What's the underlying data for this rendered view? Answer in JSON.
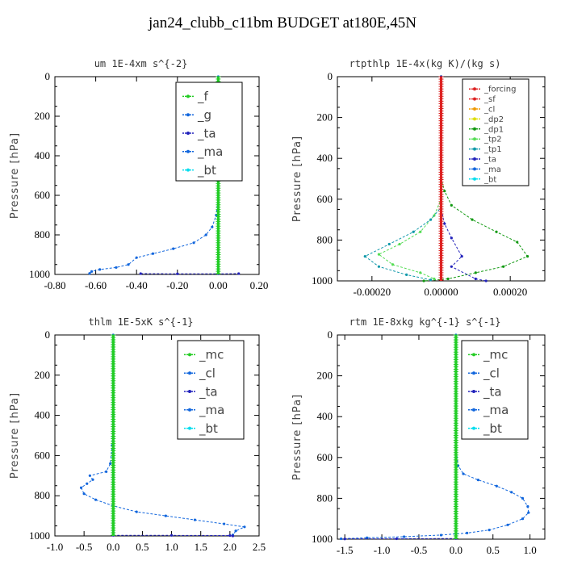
{
  "title": "jan24_clubb_c11bm  BUDGET at180E,45N",
  "colors": {
    "green": "#22cc22",
    "blue": "#1166dd",
    "navy": "#2222bb",
    "cyan": "#00ddee",
    "red": "#dd2222",
    "orange": "#ee9900",
    "yellow": "#dddd00",
    "dkgreen": "#119911",
    "ltgreen": "#55dd55",
    "teal": "#1199aa"
  },
  "chart_data": [
    {
      "id": "um",
      "type": "line",
      "title": "um   1E-4xm s^{-2}",
      "ylabel": "Pressure [hPa]",
      "xlim": [
        -0.8,
        0.2
      ],
      "ylim": [
        1000,
        0
      ],
      "xticks": [
        "-0.80",
        "-0.60",
        "-0.40",
        "-0.20",
        "0.00",
        "0.20"
      ],
      "xtick_values": [
        -0.8,
        -0.6,
        -0.4,
        -0.2,
        0.0,
        0.2
      ],
      "yticks": [
        "0",
        "200",
        "400",
        "600",
        "800",
        "1000"
      ],
      "ytick_values": [
        0,
        200,
        400,
        600,
        800,
        1000
      ],
      "legend": [
        "_f",
        "_g",
        "_ta",
        "_ma",
        "_bt"
      ],
      "legend_font": 15,
      "series": [
        {
          "name": "_g",
          "color": "blue",
          "dash": "3,2",
          "points": [
            [
              0,
              0
            ],
            [
              0,
              200
            ],
            [
              0,
              400
            ],
            [
              0,
              600
            ],
            [
              -0.01,
              700
            ],
            [
              -0.03,
              760
            ],
            [
              -0.06,
              800
            ],
            [
              -0.12,
              840
            ],
            [
              -0.22,
              870
            ],
            [
              -0.32,
              895
            ],
            [
              -0.4,
              915
            ],
            [
              -0.44,
              950
            ],
            [
              -0.5,
              965
            ],
            [
              -0.58,
              975
            ],
            [
              -0.62,
              985
            ],
            [
              -0.63,
              995
            ]
          ]
        },
        {
          "name": "_ta",
          "color": "navy",
          "dash": "3,2",
          "points": [
            [
              -0.38,
              996
            ],
            [
              -0.2,
              997
            ],
            [
              0,
              997
            ],
            [
              0.1,
              996
            ]
          ]
        },
        {
          "name": "_bt",
          "color": "cyan",
          "dash": "",
          "points": [
            [
              0,
              0
            ],
            [
              0,
              1000
            ]
          ]
        },
        {
          "name": "_f",
          "color": "green",
          "dash": "",
          "points": [
            [
              0,
              0
            ],
            [
              0,
              1000
            ]
          ]
        }
      ]
    },
    {
      "id": "rtpthlp",
      "type": "line",
      "title": "rtpthlp   1E-4x(kg K)/(kg s)",
      "ylabel": "Pressure [hPa]",
      "xlim": [
        -0.0003,
        0.0003
      ],
      "ylim": [
        1000,
        0
      ],
      "xticks": [
        "-0.00020",
        "0.00000",
        "0.00020"
      ],
      "xtick_values": [
        -0.0002,
        0.0,
        0.0002
      ],
      "yticks": [
        "0",
        "200",
        "400",
        "600",
        "800",
        "1000"
      ],
      "ytick_values": [
        0,
        200,
        400,
        600,
        800,
        1000
      ],
      "legend": [
        "_forcing",
        "_sf",
        "_cl",
        "_dp2",
        "_dp1",
        "_tp2",
        "_tp1",
        "_ta",
        "_ma",
        "_bt"
      ],
      "legend_font": 10,
      "series": [
        {
          "name": "_dp1",
          "color": "dkgreen",
          "dash": "3,2",
          "points": [
            [
              0,
              0
            ],
            [
              0,
              500
            ],
            [
              1e-05,
              560
            ],
            [
              3e-05,
              630
            ],
            [
              9e-05,
              700
            ],
            [
              0.00016,
              760
            ],
            [
              0.00022,
              810
            ],
            [
              0.00025,
              880
            ],
            [
              0.00018,
              930
            ],
            [
              0.0001,
              960
            ],
            [
              2e-05,
              990
            ],
            [
              -5e-05,
              1000
            ]
          ]
        },
        {
          "name": "_tp2",
          "color": "ltgreen",
          "dash": "3,2",
          "points": [
            [
              0,
              0
            ],
            [
              0,
              600
            ],
            [
              -2e-05,
              680
            ],
            [
              -6e-05,
              760
            ],
            [
              -0.00012,
              820
            ],
            [
              -0.00018,
              870
            ],
            [
              -0.00014,
              920
            ],
            [
              -6e-05,
              960
            ],
            [
              -2e-05,
              990
            ]
          ]
        },
        {
          "name": "_tp1",
          "color": "teal",
          "dash": "3,2",
          "points": [
            [
              0,
              0
            ],
            [
              0,
              640
            ],
            [
              -3e-05,
              700
            ],
            [
              -8e-05,
              760
            ],
            [
              -0.00015,
              820
            ],
            [
              -0.00022,
              880
            ],
            [
              -0.00018,
              930
            ],
            [
              -0.0001,
              970
            ],
            [
              -3e-05,
              995
            ]
          ]
        },
        {
          "name": "_ta",
          "color": "navy",
          "dash": "3,2",
          "points": [
            [
              0,
              0
            ],
            [
              0,
              650
            ],
            [
              1e-05,
              720
            ],
            [
              3e-05,
              790
            ],
            [
              6e-05,
              880
            ],
            [
              3e-05,
              930
            ],
            [
              0.0001,
              990
            ],
            [
              0.00013,
              1000
            ]
          ]
        },
        {
          "name": "_bt",
          "color": "cyan",
          "dash": "",
          "points": [
            [
              0,
              0
            ],
            [
              0,
              1000
            ]
          ]
        },
        {
          "name": "_forcing",
          "color": "red",
          "dash": "",
          "points": [
            [
              0,
              0
            ],
            [
              0,
              1000
            ]
          ]
        }
      ]
    },
    {
      "id": "thlm",
      "type": "line",
      "title": "thlm   1E-5xK s^{-1}",
      "ylabel": "Pressure [hPa]",
      "xlim": [
        -1.0,
        2.5
      ],
      "ylim": [
        1000,
        0
      ],
      "xticks": [
        "-1.0",
        "-0.5",
        "0.0",
        "0.5",
        "1.0",
        "1.5",
        "2.0",
        "2.5"
      ],
      "xtick_values": [
        -1.0,
        -0.5,
        0.0,
        0.5,
        1.0,
        1.5,
        2.0,
        2.5
      ],
      "yticks": [
        "0",
        "200",
        "400",
        "600",
        "800",
        "1000"
      ],
      "ytick_values": [
        0,
        200,
        400,
        600,
        800,
        1000
      ],
      "legend": [
        "_mc",
        "_cl",
        "_ta",
        "_ma",
        "_bt"
      ],
      "legend_font": 15,
      "series": [
        {
          "name": "_cl",
          "color": "blue",
          "dash": "3,2",
          "points": [
            [
              0,
              0
            ],
            [
              0,
              400
            ],
            [
              -0.02,
              550
            ],
            [
              -0.05,
              640
            ],
            [
              -0.12,
              680
            ],
            [
              -0.4,
              700
            ],
            [
              -0.35,
              720
            ],
            [
              -0.45,
              740
            ],
            [
              -0.55,
              760
            ],
            [
              -0.5,
              790
            ],
            [
              -0.3,
              820
            ],
            [
              0,
              850
            ],
            [
              0.4,
              880
            ],
            [
              0.9,
              900
            ],
            [
              1.4,
              920
            ],
            [
              1.9,
              940
            ],
            [
              2.25,
              955
            ],
            [
              2.1,
              975
            ],
            [
              2.05,
              995
            ]
          ]
        },
        {
          "name": "_ta",
          "color": "navy",
          "dash": "3,2",
          "points": [
            [
              0,
              997
            ],
            [
              1,
              997
            ],
            [
              2.0,
              998
            ],
            [
              2.05,
              1000
            ]
          ]
        },
        {
          "name": "_bt",
          "color": "cyan",
          "dash": "",
          "points": [
            [
              0,
              0
            ],
            [
              0,
              1000
            ]
          ]
        },
        {
          "name": "_mc",
          "color": "green",
          "dash": "",
          "points": [
            [
              0,
              0
            ],
            [
              0,
              1000
            ]
          ]
        }
      ]
    },
    {
      "id": "rtm",
      "type": "line",
      "title": "rtm   1E-8xkg kg^{-1} s^{-1}",
      "ylabel": "Pressure [hPa]",
      "xlim": [
        -1.6,
        1.2
      ],
      "ylim": [
        1000,
        0
      ],
      "xticks": [
        "-1.5",
        "-1.0",
        "-0.5",
        "0.0",
        "0.5",
        "1.0"
      ],
      "xtick_values": [
        -1.5,
        -1.0,
        -0.5,
        0.0,
        0.5,
        1.0
      ],
      "yticks": [
        "0",
        "200",
        "400",
        "600",
        "800",
        "1000"
      ],
      "ytick_values": [
        0,
        200,
        400,
        600,
        800,
        1000
      ],
      "legend": [
        "_mc",
        "_cl",
        "_ta",
        "_ma",
        "_bt"
      ],
      "legend_font": 15,
      "series": [
        {
          "name": "_cl",
          "color": "blue",
          "dash": "3,2",
          "points": [
            [
              0,
              0
            ],
            [
              0,
              550
            ],
            [
              0.03,
              640
            ],
            [
              0.1,
              680
            ],
            [
              0.3,
              710
            ],
            [
              0.55,
              740
            ],
            [
              0.75,
              770
            ],
            [
              0.9,
              800
            ],
            [
              0.97,
              840
            ],
            [
              0.98,
              870
            ],
            [
              0.9,
              900
            ],
            [
              0.7,
              930
            ],
            [
              0.45,
              955
            ],
            [
              0.15,
              970
            ],
            [
              -0.2,
              980
            ],
            [
              -0.7,
              988
            ],
            [
              -1.2,
              993
            ],
            [
              -1.55,
              998
            ]
          ]
        },
        {
          "name": "_ta",
          "color": "navy",
          "dash": "3,2",
          "points": [
            [
              0,
              997
            ],
            [
              -0.8,
              998
            ],
            [
              -1.5,
              999
            ]
          ]
        },
        {
          "name": "_bt",
          "color": "cyan",
          "dash": "",
          "points": [
            [
              0,
              0
            ],
            [
              0,
              1000
            ]
          ]
        },
        {
          "name": "_mc",
          "color": "green",
          "dash": "",
          "points": [
            [
              0,
              0
            ],
            [
              0,
              1000
            ]
          ]
        }
      ]
    }
  ]
}
